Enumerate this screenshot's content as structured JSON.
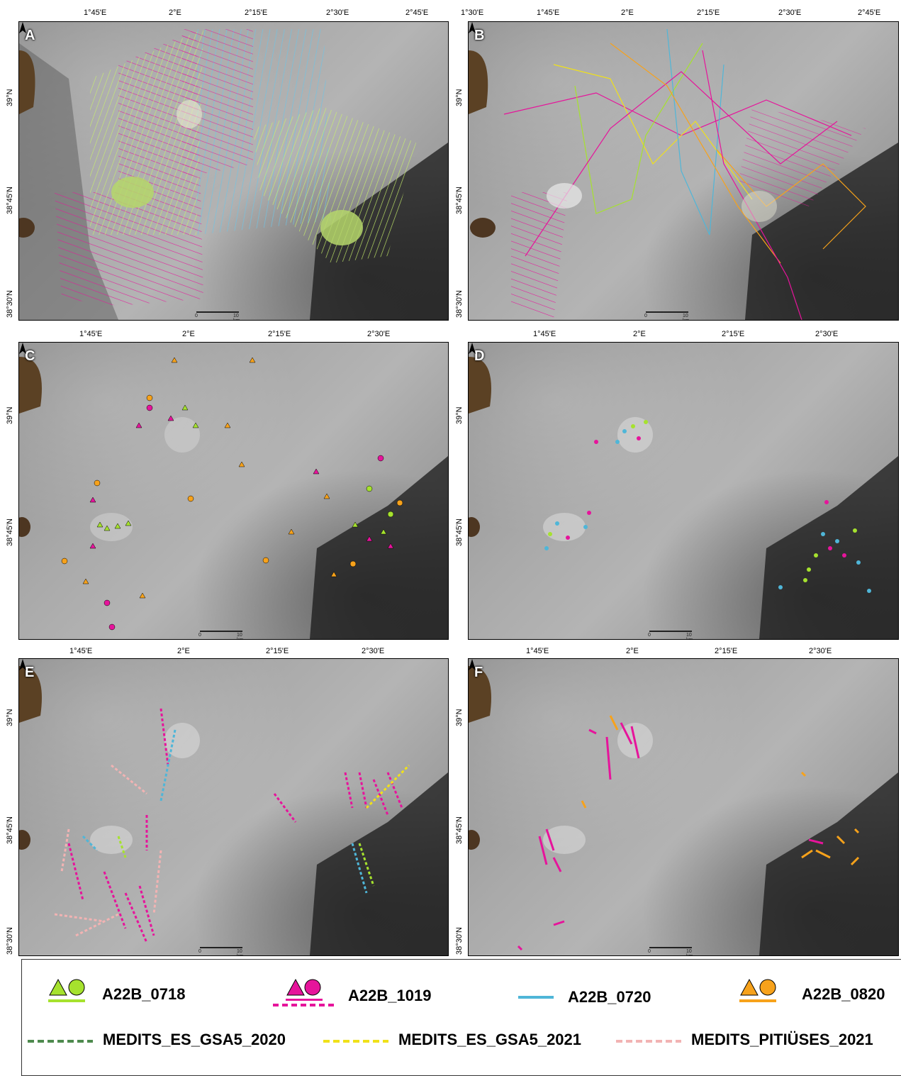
{
  "panels": [
    {
      "letter": "A",
      "top_ticks": [
        "1°45'E",
        "2°E",
        "2°15'E",
        "2°30'E",
        "2°45'E"
      ],
      "left_ticks": [
        "39°N",
        "38°45'N",
        "38°30'N"
      ]
    },
    {
      "letter": "B",
      "top_ticks": [
        "1°30'E",
        "1°45'E",
        "2°E",
        "2°15'E",
        "2°30'E",
        "2°45'E"
      ],
      "left_ticks": [
        "39°N",
        "38°45'N",
        "38°30'N"
      ]
    },
    {
      "letter": "C",
      "top_ticks": [
        "1°45'E",
        "2°E",
        "2°15'E",
        "2°30'E"
      ],
      "left_ticks": [
        "39°N",
        "38°45'N"
      ]
    },
    {
      "letter": "D",
      "top_ticks": [
        "1°45'E",
        "2°E",
        "2°15'E",
        "2°30'E"
      ],
      "left_ticks": [
        "39°N",
        "38°45'N"
      ]
    },
    {
      "letter": "E",
      "top_ticks": [
        "1°45'E",
        "2°E",
        "2°15'E",
        "2°30'E"
      ],
      "left_ticks": [
        "39°N",
        "38°45'N",
        "38°30'N"
      ]
    },
    {
      "letter": "F",
      "top_ticks": [
        "1°45'E",
        "2°E",
        "2°15'E",
        "2°30'E"
      ],
      "left_ticks": [
        "39°N",
        "38°45'N",
        "38°30'N"
      ]
    }
  ],
  "scale": {
    "zero": "0",
    "ten": "10 km"
  },
  "legend": {
    "a0718": "A22B_0718",
    "a1019": "A22B_1019",
    "a0720": "A22B_0720",
    "a0820": "A22B_0820",
    "gsa2020": "MEDITS_ES_GSA5_2020",
    "gsa2021": "MEDITS_ES_GSA5_2021",
    "pit2021": "MEDITS_PITIÜSES_2021"
  },
  "colors": {
    "a0718": "#a6e22e",
    "a1019": "#e6149b",
    "a0720": "#4fb6d8",
    "a0820": "#f7a21b",
    "gsa2020": "#4e8a4e",
    "gsa2021": "#f0e11a",
    "pit2021": "#f2b3b3"
  }
}
